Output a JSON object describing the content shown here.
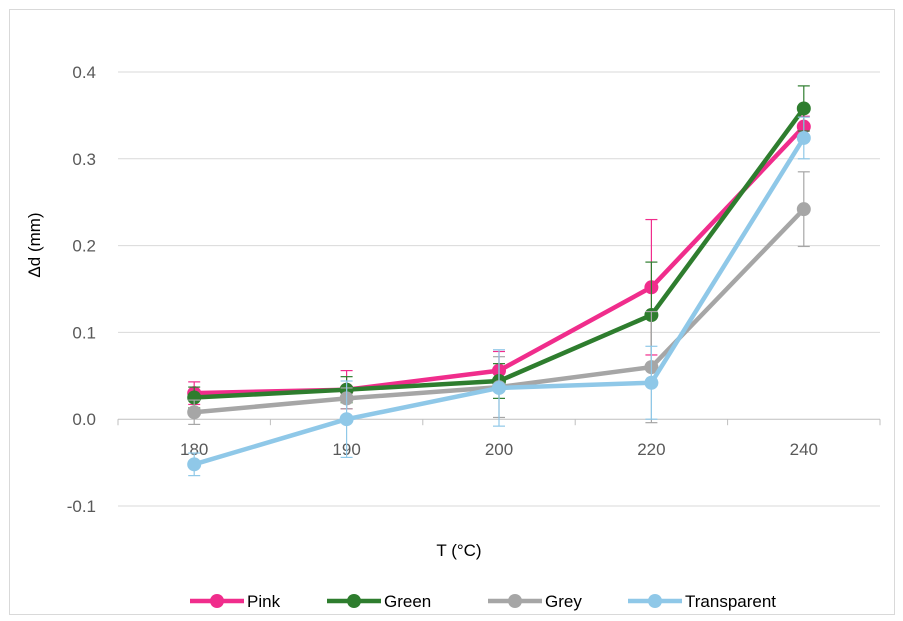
{
  "chart_data": {
    "type": "line",
    "title": "",
    "xlabel": "T (°C)",
    "ylabel": "Δd (mm)",
    "categories": [
      "180",
      "190",
      "200",
      "220",
      "240"
    ],
    "ylim": [
      -0.1,
      0.4
    ],
    "yticks": [
      "-0.1",
      "0.0",
      "0.1",
      "0.2",
      "0.3",
      "0.4"
    ],
    "grid": "horizontal",
    "legend_position": "bottom",
    "series": [
      {
        "name": "Pink",
        "color": "#f02d8c",
        "values": [
          0.03,
          0.034,
          0.056,
          0.152,
          0.337
        ],
        "errors": [
          0.013,
          0.022,
          0.022,
          0.078,
          0.012
        ]
      },
      {
        "name": "Green",
        "color": "#2e7d2e",
        "values": [
          0.025,
          0.034,
          0.044,
          0.12,
          0.358
        ],
        "errors": [
          0.012,
          0.015,
          0.02,
          0.061,
          0.026
        ]
      },
      {
        "name": "Grey",
        "color": "#a6a6a6",
        "values": [
          0.008,
          0.024,
          0.037,
          0.06,
          0.242
        ],
        "errors": [
          0.014,
          0.012,
          0.035,
          0.064,
          0.043
        ]
      },
      {
        "name": "Transparent",
        "color": "#8fc8e8",
        "values": [
          -0.052,
          0.0,
          0.036,
          0.042,
          0.324
        ],
        "errors": [
          0.013,
          0.044,
          0.044,
          0.042,
          0.024
        ]
      }
    ]
  }
}
